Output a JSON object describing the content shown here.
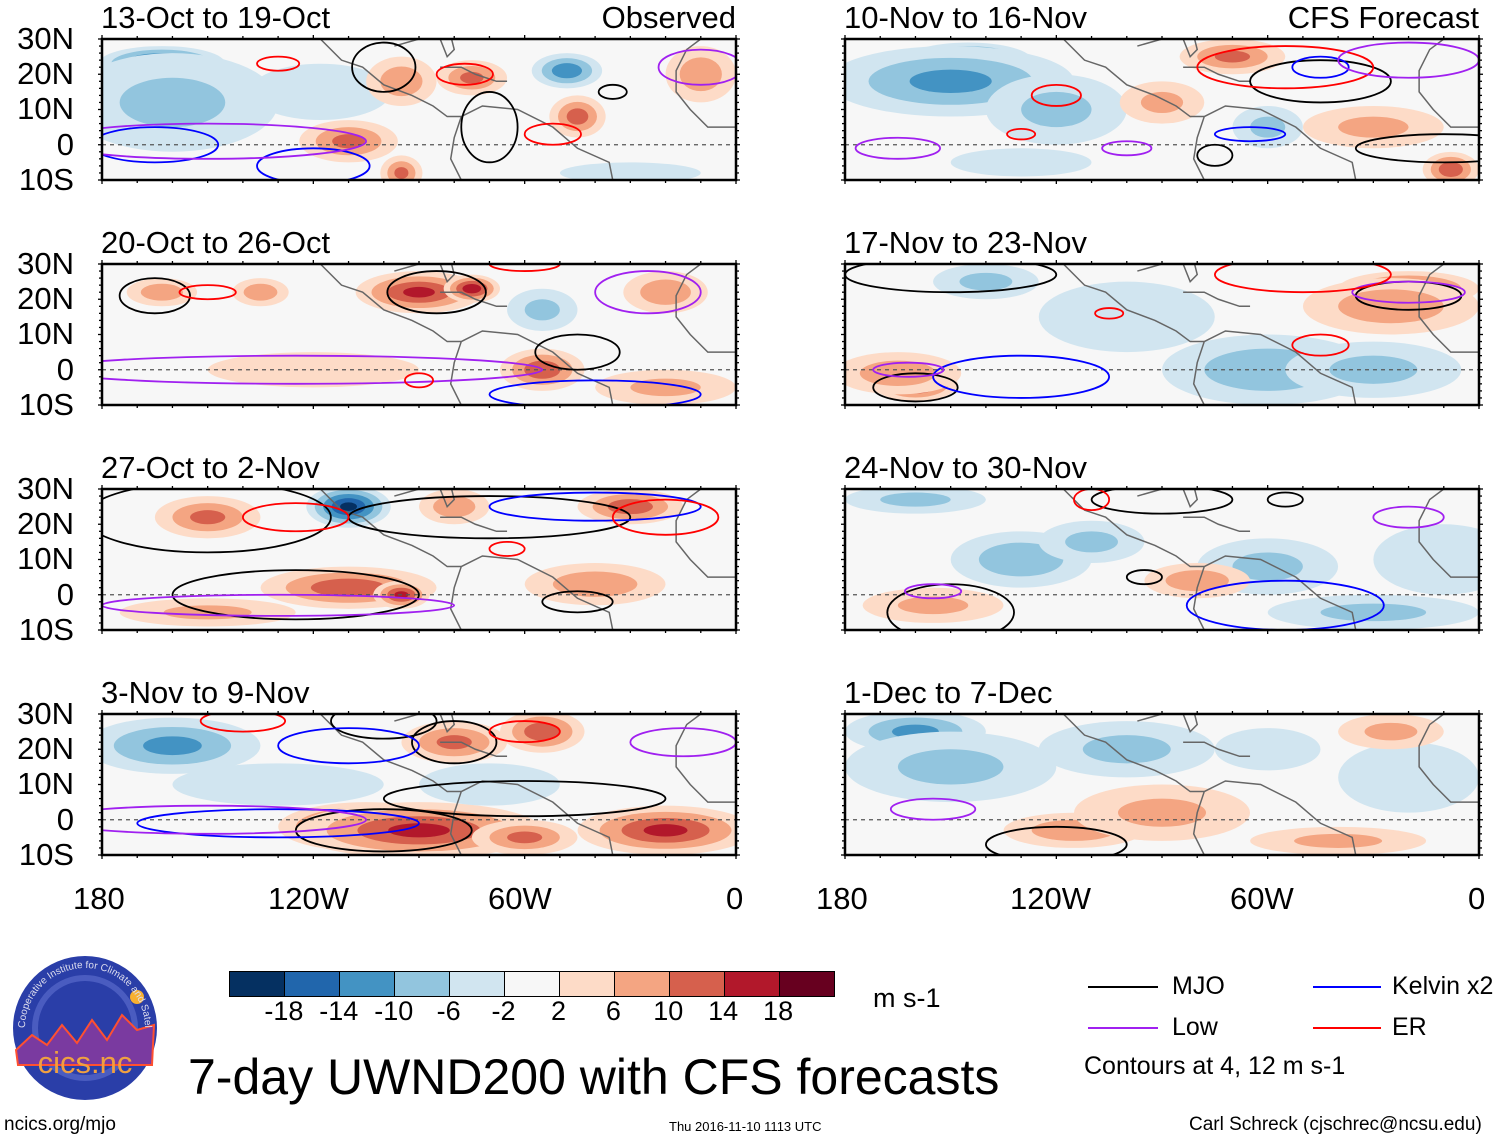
{
  "chart_data": {
    "type": "heatmap",
    "title": "7-day UWND200 with CFS forecasts",
    "variable": "200-hPa zonal wind anomaly",
    "units": "m s-1",
    "lat_ticks": [
      "30N",
      "20N",
      "10N",
      "0",
      "10S"
    ],
    "lat_range": [
      -10,
      30
    ],
    "lon_ticks": [
      "180",
      "120W",
      "60W",
      "0"
    ],
    "lon_range": [
      -180,
      0
    ],
    "colorbar": {
      "levels": [
        "-18",
        "-14",
        "-10",
        "-6",
        "-2",
        "2",
        "6",
        "10",
        "14",
        "18"
      ],
      "colors": [
        "#053061",
        "#2166ac",
        "#4393c3",
        "#92c5de",
        "#d1e5f0",
        "#f7f7f7",
        "#fddbc7",
        "#f4a582",
        "#d6604d",
        "#b2182b",
        "#67001f"
      ],
      "units": "m s-1"
    },
    "legend": {
      "items": [
        {
          "label": "MJO",
          "color": "#000000"
        },
        {
          "label": "Kelvin x2",
          "color": "#0000ff"
        },
        {
          "label": "Low",
          "color": "#a020f0"
        },
        {
          "label": "ER",
          "color": "#ff0000"
        }
      ],
      "note": "Contours at 4, 12 m s-1"
    },
    "panels": [
      {
        "title": "13-Oct to 19-Oct",
        "tag": "Observed",
        "anoms": [
          [
            -163,
            23,
            18,
            5,
            -18
          ],
          [
            -160,
            12,
            30,
            14,
            -6
          ],
          [
            -118,
            15,
            20,
            8,
            -4
          ],
          [
            -110,
            1,
            14,
            6,
            10
          ],
          [
            -95,
            18,
            10,
            7,
            8
          ],
          [
            -75,
            19,
            10,
            5,
            10
          ],
          [
            -48,
            21,
            10,
            5,
            -12
          ],
          [
            -45,
            8,
            8,
            6,
            11
          ],
          [
            -10,
            20,
            10,
            8,
            8
          ],
          [
            -95,
            -8,
            6,
            5,
            10
          ],
          [
            -30,
            -8,
            20,
            3,
            -4
          ]
        ],
        "contours": [
          [
            -100,
            22,
            9,
            7,
            "MJO"
          ],
          [
            -70,
            5,
            8,
            10,
            "MJO"
          ],
          [
            -35,
            15,
            4,
            2,
            "MJO"
          ],
          [
            -165,
            0,
            18,
            5,
            "Kelvin"
          ],
          [
            -120,
            -6,
            16,
            5,
            "Kelvin"
          ],
          [
            -130,
            23,
            6,
            2,
            "ER"
          ],
          [
            -77,
            20,
            8,
            3,
            "ER"
          ],
          [
            -52,
            3,
            8,
            3,
            "ER"
          ],
          [
            -150,
            1,
            45,
            5,
            "Low"
          ],
          [
            -10,
            22,
            12,
            5,
            "Low"
          ]
        ]
      },
      {
        "title": "10-Nov to 16-Nov",
        "tag": "CFS Forecast",
        "anoms": [
          [
            -145,
            24,
            18,
            5,
            -18
          ],
          [
            -150,
            18,
            35,
            10,
            -10
          ],
          [
            -120,
            10,
            20,
            10,
            -6
          ],
          [
            -70,
            25,
            15,
            5,
            10
          ],
          [
            -90,
            12,
            12,
            6,
            6
          ],
          [
            -60,
            5,
            10,
            6,
            -6
          ],
          [
            -8,
            -7,
            8,
            5,
            12
          ],
          [
            -130,
            -5,
            20,
            4,
            -4
          ],
          [
            -30,
            5,
            20,
            6,
            6
          ]
        ],
        "contours": [
          [
            -45,
            18,
            20,
            6,
            "MJO"
          ],
          [
            -10,
            -1,
            25,
            4,
            "MJO"
          ],
          [
            -75,
            -3,
            5,
            3,
            "MJO"
          ],
          [
            -45,
            22,
            8,
            3,
            "Kelvin"
          ],
          [
            -65,
            3,
            10,
            2,
            "Kelvin"
          ],
          [
            -55,
            22,
            25,
            6,
            "ER"
          ],
          [
            -120,
            14,
            7,
            3,
            "ER"
          ],
          [
            -130,
            3,
            4,
            1.5,
            "ER"
          ],
          [
            -165,
            -1,
            12,
            3,
            "Low"
          ],
          [
            -100,
            -1,
            7,
            2,
            "Low"
          ],
          [
            -20,
            24,
            20,
            5,
            "Low"
          ]
        ]
      },
      {
        "title": "20-Oct to 26-Oct",
        "tag": "",
        "anoms": [
          [
            -163,
            22,
            10,
            4,
            8
          ],
          [
            -135,
            22,
            8,
            4,
            8
          ],
          [
            -90,
            22,
            18,
            6,
            14
          ],
          [
            -75,
            23,
            8,
            4,
            16
          ],
          [
            -55,
            0,
            12,
            6,
            12
          ],
          [
            -55,
            17,
            10,
            6,
            -6
          ],
          [
            -20,
            22,
            12,
            6,
            8
          ],
          [
            -120,
            0,
            30,
            5,
            2
          ],
          [
            -20,
            -5,
            20,
            5,
            6
          ]
        ],
        "contours": [
          [
            -165,
            21,
            10,
            5,
            "MJO"
          ],
          [
            -85,
            22,
            14,
            6,
            "MJO"
          ],
          [
            -45,
            5,
            12,
            5,
            "MJO"
          ],
          [
            -125,
            0,
            70,
            4,
            "Low"
          ],
          [
            -25,
            22,
            15,
            6,
            "Low"
          ],
          [
            -40,
            -7,
            30,
            4,
            "Kelvin"
          ],
          [
            -60,
            30,
            10,
            2,
            "ER"
          ],
          [
            -150,
            22,
            8,
            2,
            "ER"
          ],
          [
            -90,
            -3,
            4,
            2,
            "ER"
          ]
        ]
      },
      {
        "title": "17-Nov to 23-Nov",
        "tag": "",
        "anoms": [
          [
            -160,
            -4,
            12,
            5,
            16
          ],
          [
            -165,
            -1,
            18,
            6,
            8
          ],
          [
            -20,
            23,
            20,
            5,
            14
          ],
          [
            -25,
            18,
            25,
            8,
            8
          ],
          [
            -100,
            15,
            25,
            10,
            -4
          ],
          [
            -60,
            0,
            30,
            10,
            -8
          ],
          [
            -30,
            0,
            25,
            8,
            -6
          ],
          [
            -140,
            25,
            15,
            5,
            -6
          ]
        ],
        "contours": [
          [
            -150,
            27,
            30,
            5,
            "MJO"
          ],
          [
            -20,
            21,
            15,
            4,
            "MJO"
          ],
          [
            -160,
            -5,
            12,
            4,
            "MJO"
          ],
          [
            -130,
            -2,
            25,
            6,
            "Kelvin"
          ],
          [
            -20,
            22,
            16,
            3,
            "Low"
          ],
          [
            -162,
            0,
            10,
            2,
            "Low"
          ],
          [
            -45,
            7,
            8,
            3,
            "ER"
          ],
          [
            -105,
            16,
            4,
            1.5,
            "ER"
          ],
          [
            -50,
            27,
            25,
            5,
            "ER"
          ]
        ]
      },
      {
        "title": "27-Oct to 2-Nov",
        "tag": "",
        "anoms": [
          [
            -150,
            22,
            15,
            6,
            10
          ],
          [
            -110,
            25,
            12,
            6,
            -18
          ],
          [
            -80,
            25,
            10,
            5,
            8
          ],
          [
            -30,
            25,
            15,
            5,
            12
          ],
          [
            -110,
            2,
            25,
            6,
            12
          ],
          [
            -95,
            0,
            8,
            4,
            14
          ],
          [
            -40,
            3,
            20,
            6,
            8
          ],
          [
            -150,
            -5,
            25,
            4,
            6
          ]
        ],
        "contours": [
          [
            -150,
            22,
            35,
            10,
            "MJO"
          ],
          [
            -125,
            0,
            35,
            7,
            "MJO"
          ],
          [
            -45,
            -2,
            10,
            3,
            "MJO"
          ],
          [
            -70,
            22,
            40,
            6,
            "MJO"
          ],
          [
            -130,
            -3,
            50,
            3,
            "Low"
          ],
          [
            -40,
            25,
            30,
            4,
            "Kelvin"
          ],
          [
            -125,
            22,
            15,
            4,
            "ER"
          ],
          [
            -20,
            22,
            15,
            5,
            "ER"
          ],
          [
            -65,
            13,
            5,
            2,
            "ER"
          ]
        ]
      },
      {
        "title": "24-Nov to 30-Nov",
        "tag": "",
        "anoms": [
          [
            -160,
            27,
            20,
            4,
            -6
          ],
          [
            -130,
            10,
            20,
            8,
            -8
          ],
          [
            -110,
            15,
            15,
            6,
            -6
          ],
          [
            -60,
            8,
            20,
            8,
            -6
          ],
          [
            -80,
            4,
            15,
            5,
            8
          ],
          [
            -155,
            -3,
            20,
            5,
            6
          ],
          [
            -10,
            10,
            20,
            10,
            -4
          ],
          [
            -30,
            -5,
            30,
            5,
            -6
          ]
        ],
        "contours": [
          [
            -150,
            -5,
            18,
            8,
            "MJO"
          ],
          [
            -90,
            27,
            20,
            4,
            "MJO"
          ],
          [
            -95,
            5,
            5,
            2,
            "MJO"
          ],
          [
            -55,
            27,
            5,
            2,
            "MJO"
          ],
          [
            -55,
            -3,
            28,
            7,
            "Kelvin"
          ],
          [
            -155,
            1,
            8,
            2,
            "Low"
          ],
          [
            -20,
            22,
            10,
            3,
            "Low"
          ],
          [
            -110,
            27,
            5,
            3,
            "ER"
          ]
        ]
      },
      {
        "title": "3-Nov to 9-Nov",
        "tag": "",
        "anoms": [
          [
            -165,
            21,
            15,
            6,
            -18
          ],
          [
            -160,
            21,
            25,
            8,
            -10
          ],
          [
            -105,
            -2,
            25,
            7,
            18
          ],
          [
            -90,
            -3,
            35,
            8,
            14
          ],
          [
            -20,
            -3,
            25,
            7,
            14
          ],
          [
            -60,
            -5,
            15,
            5,
            10
          ],
          [
            -80,
            22,
            15,
            6,
            10
          ],
          [
            -55,
            25,
            12,
            6,
            12
          ],
          [
            -130,
            10,
            30,
            6,
            -4
          ],
          [
            -70,
            10,
            20,
            6,
            -4
          ]
        ],
        "contours": [
          [
            -100,
            -3,
            25,
            6,
            "MJO"
          ],
          [
            -60,
            6,
            40,
            5,
            "MJO"
          ],
          [
            -80,
            22,
            12,
            6,
            "MJO"
          ],
          [
            -100,
            28,
            15,
            5,
            "MJO"
          ],
          [
            -130,
            -1,
            40,
            4,
            "Kelvin"
          ],
          [
            -110,
            21,
            20,
            5,
            "Kelvin"
          ],
          [
            -150,
            0,
            45,
            4,
            "Low"
          ],
          [
            -15,
            22,
            15,
            4,
            "Low"
          ],
          [
            -60,
            25,
            10,
            3,
            "ER"
          ],
          [
            -140,
            28,
            12,
            3,
            "ER"
          ]
        ]
      },
      {
        "title": "1-Dec to 7-Dec",
        "tag": "",
        "anoms": [
          [
            -160,
            25,
            20,
            6,
            -10
          ],
          [
            -150,
            15,
            30,
            10,
            -6
          ],
          [
            -100,
            20,
            25,
            8,
            -6
          ],
          [
            -115,
            -3,
            20,
            5,
            8
          ],
          [
            -90,
            2,
            25,
            8,
            6
          ],
          [
            -40,
            -6,
            25,
            4,
            6
          ],
          [
            -20,
            12,
            20,
            10,
            -4
          ],
          [
            -25,
            25,
            15,
            5,
            6
          ],
          [
            -60,
            20,
            15,
            6,
            -4
          ]
        ],
        "contours": [
          [
            -120,
            -7,
            20,
            5,
            "MJO"
          ],
          [
            -155,
            3,
            12,
            3,
            "Low"
          ]
        ]
      }
    ]
  },
  "footer": {
    "logo_text": "cics.nc",
    "logo_ring_text": "Cooperative Institute for Climate and Satellites",
    "url": "ncics.org/mjo",
    "timestamp": "Thu 2016-11-10 1113 UTC",
    "author": "Carl Schreck (cjschrec@ncsu.edu)"
  }
}
